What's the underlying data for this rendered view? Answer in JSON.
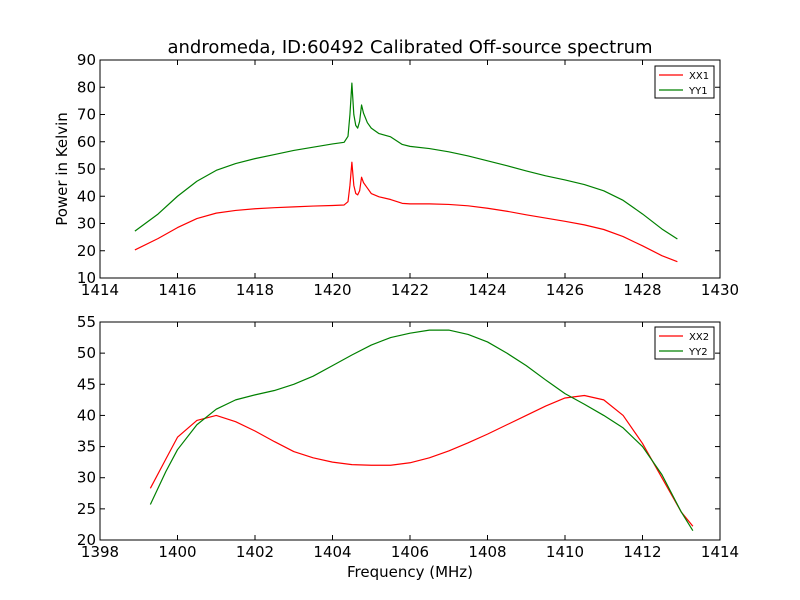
{
  "chart_data": [
    {
      "type": "line",
      "title": "andromeda, ID:60492 Calibrated Off-source spectrum",
      "xlabel": "",
      "ylabel": "Power in Kelvin",
      "xlim": [
        1414,
        1430
      ],
      "ylim": [
        10,
        90
      ],
      "xticks": [
        1414,
        1416,
        1418,
        1420,
        1422,
        1424,
        1426,
        1428,
        1430
      ],
      "yticks": [
        10,
        20,
        30,
        40,
        50,
        60,
        70,
        80,
        90
      ],
      "legend": "top-right",
      "grid": false,
      "series": [
        {
          "name": "XX1",
          "color": "#ff0000",
          "points": [
            [
              1414.9,
              20.3
            ],
            [
              1415.5,
              24.5
            ],
            [
              1416.0,
              28.5
            ],
            [
              1416.5,
              31.8
            ],
            [
              1417.0,
              33.8
            ],
            [
              1417.5,
              34.8
            ],
            [
              1418.0,
              35.4
            ],
            [
              1418.5,
              35.8
            ],
            [
              1419.0,
              36.1
            ],
            [
              1419.5,
              36.4
            ],
            [
              1420.0,
              36.6
            ],
            [
              1420.3,
              36.8
            ],
            [
              1420.4,
              38.0
            ],
            [
              1420.45,
              44.0
            ],
            [
              1420.5,
              52.5
            ],
            [
              1420.55,
              44.0
            ],
            [
              1420.6,
              41.0
            ],
            [
              1420.65,
              40.5
            ],
            [
              1420.7,
              42.0
            ],
            [
              1420.75,
              47.0
            ],
            [
              1420.8,
              45.0
            ],
            [
              1420.9,
              43.0
            ],
            [
              1421.0,
              41.0
            ],
            [
              1421.2,
              39.8
            ],
            [
              1421.5,
              38.8
            ],
            [
              1421.8,
              37.4
            ],
            [
              1422.0,
              37.2
            ],
            [
              1422.5,
              37.2
            ],
            [
              1423.0,
              37.0
            ],
            [
              1423.5,
              36.5
            ],
            [
              1424.0,
              35.6
            ],
            [
              1424.5,
              34.5
            ],
            [
              1425.0,
              33.2
            ],
            [
              1425.5,
              32.0
            ],
            [
              1426.0,
              30.8
            ],
            [
              1426.5,
              29.5
            ],
            [
              1427.0,
              27.8
            ],
            [
              1427.5,
              25.2
            ],
            [
              1428.0,
              21.8
            ],
            [
              1428.5,
              18.2
            ],
            [
              1428.9,
              16.0
            ]
          ]
        },
        {
          "name": "YY1",
          "color": "#008000",
          "points": [
            [
              1414.9,
              27.2
            ],
            [
              1415.5,
              33.5
            ],
            [
              1416.0,
              40.0
            ],
            [
              1416.5,
              45.5
            ],
            [
              1417.0,
              49.5
            ],
            [
              1417.5,
              52.0
            ],
            [
              1418.0,
              53.8
            ],
            [
              1418.5,
              55.3
            ],
            [
              1419.0,
              56.8
            ],
            [
              1419.5,
              58.0
            ],
            [
              1420.0,
              59.2
            ],
            [
              1420.3,
              59.8
            ],
            [
              1420.4,
              62.0
            ],
            [
              1420.45,
              70.0
            ],
            [
              1420.5,
              81.5
            ],
            [
              1420.55,
              70.0
            ],
            [
              1420.6,
              66.0
            ],
            [
              1420.65,
              65.0
            ],
            [
              1420.7,
              67.5
            ],
            [
              1420.75,
              73.5
            ],
            [
              1420.8,
              70.5
            ],
            [
              1420.9,
              67.0
            ],
            [
              1421.0,
              65.0
            ],
            [
              1421.2,
              63.0
            ],
            [
              1421.5,
              61.8
            ],
            [
              1421.8,
              59.0
            ],
            [
              1422.0,
              58.3
            ],
            [
              1422.5,
              57.5
            ],
            [
              1423.0,
              56.3
            ],
            [
              1423.5,
              54.8
            ],
            [
              1424.0,
              53.0
            ],
            [
              1424.5,
              51.2
            ],
            [
              1425.0,
              49.3
            ],
            [
              1425.5,
              47.5
            ],
            [
              1426.0,
              46.0
            ],
            [
              1426.5,
              44.3
            ],
            [
              1427.0,
              42.0
            ],
            [
              1427.5,
              38.5
            ],
            [
              1428.0,
              33.5
            ],
            [
              1428.5,
              28.0
            ],
            [
              1428.9,
              24.3
            ]
          ]
        }
      ]
    },
    {
      "type": "line",
      "title": "",
      "xlabel": "Frequency (MHz)",
      "ylabel": "",
      "xlim": [
        1398,
        1414
      ],
      "ylim": [
        20,
        55
      ],
      "xticks": [
        1398,
        1400,
        1402,
        1404,
        1406,
        1408,
        1410,
        1412,
        1414
      ],
      "yticks": [
        20,
        25,
        30,
        35,
        40,
        45,
        50,
        55
      ],
      "legend": "top-right",
      "grid": false,
      "series": [
        {
          "name": "XX2",
          "color": "#ff0000",
          "points": [
            [
              1399.3,
              28.3
            ],
            [
              1399.7,
              33.0
            ],
            [
              1400.0,
              36.5
            ],
            [
              1400.5,
              39.2
            ],
            [
              1401.0,
              40.0
            ],
            [
              1401.5,
              39.0
            ],
            [
              1402.0,
              37.5
            ],
            [
              1402.5,
              35.8
            ],
            [
              1403.0,
              34.2
            ],
            [
              1403.5,
              33.2
            ],
            [
              1404.0,
              32.5
            ],
            [
              1404.5,
              32.1
            ],
            [
              1405.0,
              32.0
            ],
            [
              1405.5,
              32.0
            ],
            [
              1406.0,
              32.4
            ],
            [
              1406.5,
              33.2
            ],
            [
              1407.0,
              34.3
            ],
            [
              1407.5,
              35.6
            ],
            [
              1408.0,
              37.0
            ],
            [
              1408.5,
              38.5
            ],
            [
              1409.0,
              40.0
            ],
            [
              1409.5,
              41.5
            ],
            [
              1410.0,
              42.8
            ],
            [
              1410.5,
              43.2
            ],
            [
              1411.0,
              42.5
            ],
            [
              1411.5,
              40.0
            ],
            [
              1412.0,
              35.5
            ],
            [
              1412.5,
              30.0
            ],
            [
              1413.0,
              24.5
            ],
            [
              1413.3,
              22.2
            ]
          ]
        },
        {
          "name": "YY2",
          "color": "#008000",
          "points": [
            [
              1399.3,
              25.7
            ],
            [
              1399.7,
              31.0
            ],
            [
              1400.0,
              34.5
            ],
            [
              1400.5,
              38.5
            ],
            [
              1401.0,
              41.0
            ],
            [
              1401.5,
              42.5
            ],
            [
              1402.0,
              43.3
            ],
            [
              1402.5,
              44.0
            ],
            [
              1403.0,
              45.0
            ],
            [
              1403.5,
              46.3
            ],
            [
              1404.0,
              48.0
            ],
            [
              1404.5,
              49.7
            ],
            [
              1405.0,
              51.3
            ],
            [
              1405.5,
              52.5
            ],
            [
              1406.0,
              53.2
            ],
            [
              1406.5,
              53.7
            ],
            [
              1407.0,
              53.7
            ],
            [
              1407.5,
              53.0
            ],
            [
              1408.0,
              51.8
            ],
            [
              1408.5,
              50.0
            ],
            [
              1409.0,
              48.0
            ],
            [
              1409.5,
              45.7
            ],
            [
              1410.0,
              43.5
            ],
            [
              1410.5,
              41.8
            ],
            [
              1411.0,
              40.0
            ],
            [
              1411.5,
              38.0
            ],
            [
              1412.0,
              35.0
            ],
            [
              1412.5,
              30.5
            ],
            [
              1413.0,
              24.5
            ],
            [
              1413.3,
              21.5
            ]
          ]
        }
      ]
    }
  ]
}
